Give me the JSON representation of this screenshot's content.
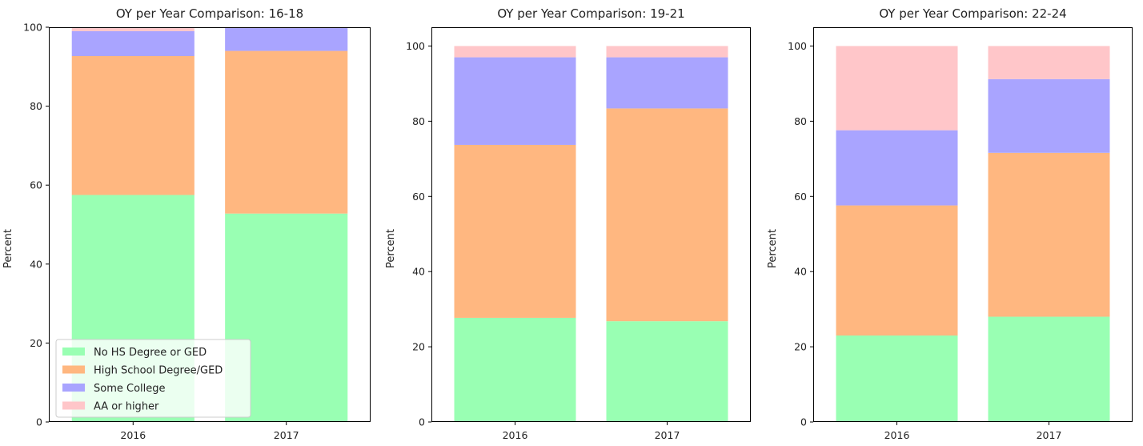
{
  "colors": {
    "No HS Degree or GED": "#99ffb3",
    "High School Degree/GED": "#ffb780",
    "Some College": "#a9a4ff",
    "AA or higher": "#ffc6c9"
  },
  "legend": {
    "placement": "lower-left of first chart",
    "entries": [
      "No HS Degree or GED",
      "High School Degree/GED",
      "Some College",
      "AA or higher"
    ]
  },
  "chart_data": [
    {
      "type": "bar",
      "stacked": true,
      "title": "OY per Year Comparison: 16-18",
      "xlabel": "",
      "ylabel": "Percent",
      "categories": [
        "2016",
        "2017"
      ],
      "ylim": [
        0,
        100
      ],
      "yticks": [
        "0",
        "20",
        "40",
        "60",
        "80",
        "100"
      ],
      "series": [
        {
          "name": "No HS Degree or GED",
          "values": [
            57.5,
            52.8
          ]
        },
        {
          "name": "High School Degree/GED",
          "values": [
            35.2,
            41.2
          ]
        },
        {
          "name": "Some College",
          "values": [
            6.3,
            6.0
          ]
        },
        {
          "name": "AA or higher",
          "values": [
            1.0,
            0.0
          ]
        }
      ]
    },
    {
      "type": "bar",
      "stacked": true,
      "title": "OY per Year Comparison: 19-21",
      "xlabel": "",
      "ylabel": "Percent",
      "categories": [
        "2016",
        "2017"
      ],
      "ylim": [
        0,
        105
      ],
      "yticks": [
        "0",
        "20",
        "40",
        "60",
        "80",
        "100"
      ],
      "series": [
        {
          "name": "No HS Degree or GED",
          "values": [
            27.7,
            26.8
          ]
        },
        {
          "name": "High School Degree/GED",
          "values": [
            46.0,
            56.6
          ]
        },
        {
          "name": "Some College",
          "values": [
            23.3,
            13.6
          ]
        },
        {
          "name": "AA or higher",
          "values": [
            3.0,
            3.0
          ]
        }
      ]
    },
    {
      "type": "bar",
      "stacked": true,
      "title": "OY per Year Comparison: 22-24",
      "xlabel": "",
      "ylabel": "Percent",
      "categories": [
        "2016",
        "2017"
      ],
      "ylim": [
        0,
        105
      ],
      "yticks": [
        "0",
        "20",
        "40",
        "60",
        "80",
        "100"
      ],
      "series": [
        {
          "name": "No HS Degree or GED",
          "values": [
            23.0,
            28.0
          ]
        },
        {
          "name": "High School Degree/GED",
          "values": [
            34.6,
            43.6
          ]
        },
        {
          "name": "Some College",
          "values": [
            20.0,
            19.6
          ]
        },
        {
          "name": "AA or higher",
          "values": [
            22.4,
            8.8
          ]
        }
      ]
    }
  ]
}
